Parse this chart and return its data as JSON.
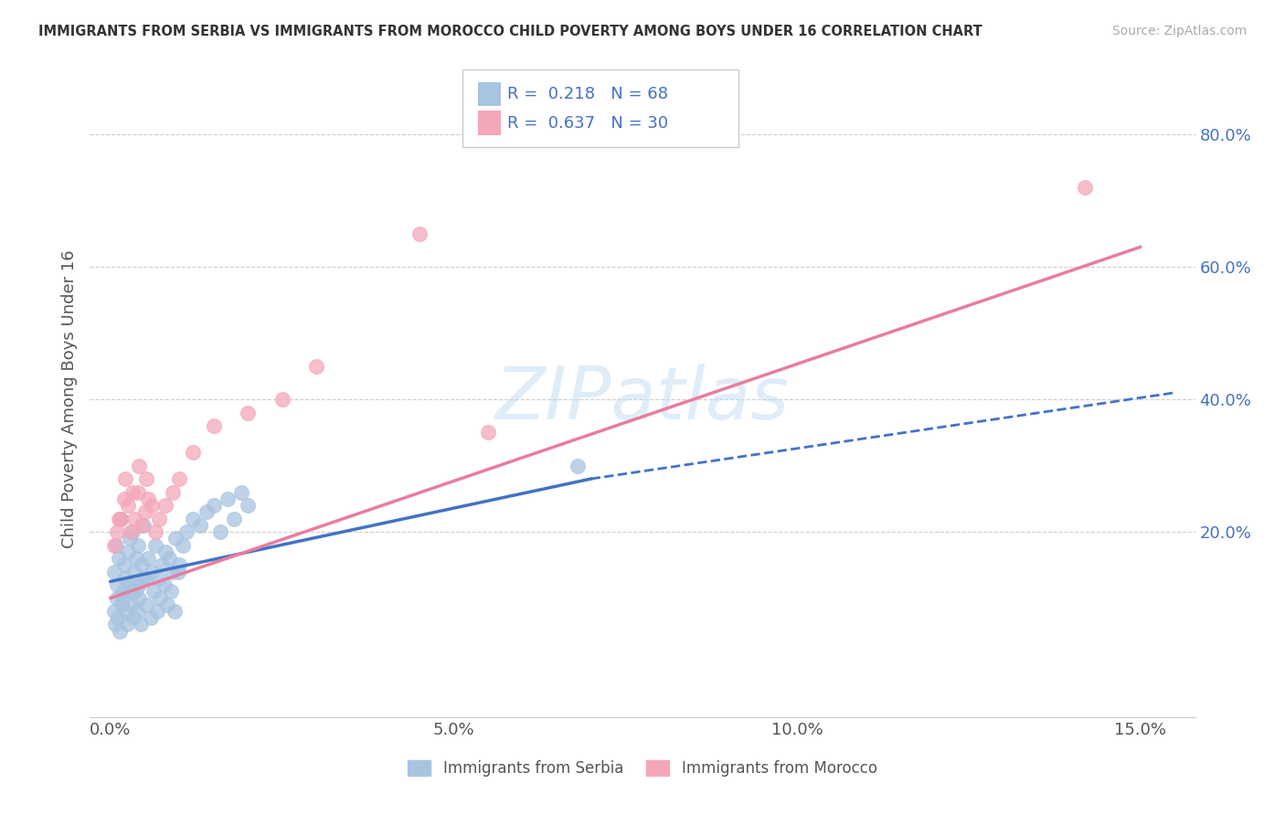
{
  "title": "IMMIGRANTS FROM SERBIA VS IMMIGRANTS FROM MOROCCO CHILD POVERTY AMONG BOYS UNDER 16 CORRELATION CHART",
  "source": "Source: ZipAtlas.com",
  "xlabel_ticks": [
    "0.0%",
    "5.0%",
    "10.0%",
    "15.0%"
  ],
  "xlabel_vals": [
    0.0,
    5.0,
    10.0,
    15.0
  ],
  "ylabel_ticks": [
    "20.0%",
    "40.0%",
    "60.0%",
    "80.0%"
  ],
  "ylabel_vals": [
    20.0,
    40.0,
    60.0,
    80.0
  ],
  "xlim": [
    -0.3,
    15.8
  ],
  "ylim": [
    -8.0,
    88.0
  ],
  "watermark": "ZIPatlas",
  "serbia_color": "#a8c4e0",
  "morocco_color": "#f4a7b9",
  "serbia_line_color": "#4472c4",
  "morocco_line_color": "#e87da0",
  "R_serbia": 0.218,
  "N_serbia": 68,
  "R_morocco": 0.637,
  "N_morocco": 30,
  "serbia_scatter_x": [
    0.05,
    0.08,
    0.1,
    0.12,
    0.15,
    0.18,
    0.2,
    0.22,
    0.25,
    0.28,
    0.3,
    0.32,
    0.35,
    0.38,
    0.4,
    0.42,
    0.45,
    0.48,
    0.5,
    0.55,
    0.6,
    0.65,
    0.7,
    0.75,
    0.8,
    0.85,
    0.9,
    0.95,
    1.0,
    1.05,
    1.1,
    1.2,
    1.3,
    1.4,
    1.5,
    1.6,
    1.7,
    1.8,
    1.9,
    2.0,
    0.05,
    0.07,
    0.09,
    0.11,
    0.13,
    0.16,
    0.19,
    0.21,
    0.24,
    0.27,
    0.31,
    0.33,
    0.36,
    0.39,
    0.41,
    0.44,
    0.47,
    0.52,
    0.58,
    0.62,
    0.68,
    0.72,
    0.78,
    0.83,
    0.88,
    0.93,
    0.99,
    6.8
  ],
  "serbia_scatter_y": [
    14.0,
    18.0,
    12.0,
    16.0,
    22.0,
    10.0,
    15.0,
    13.0,
    17.0,
    19.0,
    11.0,
    20.0,
    14.0,
    16.0,
    18.0,
    12.0,
    15.0,
    21.0,
    13.0,
    16.0,
    14.0,
    18.0,
    13.0,
    15.0,
    17.0,
    16.0,
    14.0,
    19.0,
    15.0,
    18.0,
    20.0,
    22.0,
    21.0,
    23.0,
    24.0,
    20.0,
    25.0,
    22.0,
    26.0,
    24.0,
    8.0,
    6.0,
    10.0,
    7.0,
    5.0,
    9.0,
    11.0,
    8.0,
    6.0,
    12.0,
    9.0,
    7.0,
    11.0,
    8.0,
    10.0,
    6.0,
    13.0,
    9.0,
    7.0,
    11.0,
    8.0,
    10.0,
    12.0,
    9.0,
    11.0,
    8.0,
    14.0,
    30.0
  ],
  "morocco_scatter_x": [
    0.05,
    0.1,
    0.15,
    0.2,
    0.25,
    0.3,
    0.35,
    0.4,
    0.45,
    0.5,
    0.55,
    0.6,
    0.65,
    0.7,
    0.8,
    0.9,
    1.0,
    1.2,
    1.5,
    2.0,
    2.5,
    3.0,
    0.12,
    0.22,
    0.32,
    0.42,
    0.52,
    4.5,
    14.2,
    5.5
  ],
  "morocco_scatter_y": [
    18.0,
    20.0,
    22.0,
    25.0,
    24.0,
    20.0,
    22.0,
    26.0,
    21.0,
    23.0,
    25.0,
    24.0,
    20.0,
    22.0,
    24.0,
    26.0,
    28.0,
    32.0,
    36.0,
    38.0,
    40.0,
    45.0,
    22.0,
    28.0,
    26.0,
    30.0,
    28.0,
    65.0,
    72.0,
    35.0
  ],
  "serbia_line_x0": 0.0,
  "serbia_line_y0": 12.5,
  "serbia_line_x1": 7.0,
  "serbia_line_y1": 28.0,
  "serbia_dash_x0": 7.0,
  "serbia_dash_y0": 28.0,
  "serbia_dash_x1": 15.5,
  "serbia_dash_y1": 41.0,
  "morocco_line_x0": 0.0,
  "morocco_line_y0": 10.0,
  "morocco_line_x1": 15.0,
  "morocco_line_y1": 63.0,
  "legend_colors": [
    "#a8c4e0",
    "#f4a7b9"
  ],
  "legend_labels": [
    "Immigrants from Serbia",
    "Immigrants from Morocco"
  ],
  "background_color": "#ffffff",
  "grid_color": "#cccccc"
}
